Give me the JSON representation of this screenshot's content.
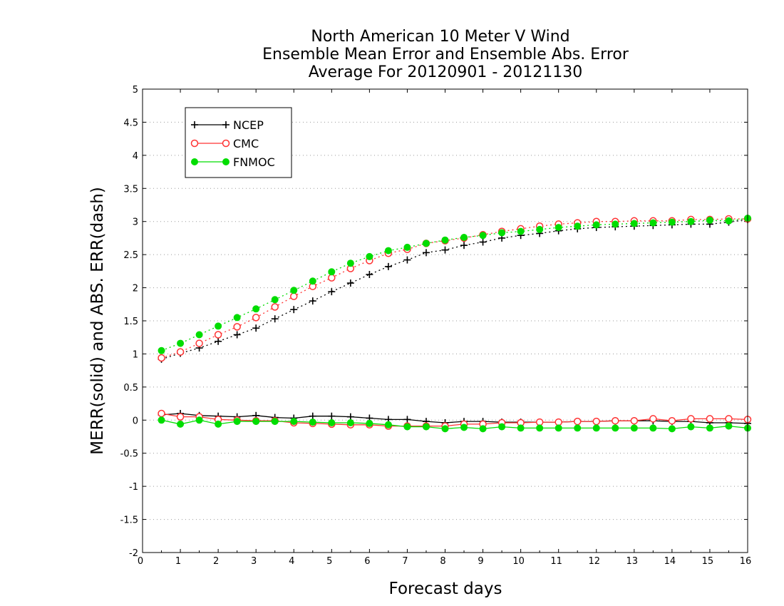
{
  "chart_data": {
    "type": "line",
    "title": [
      "North American 10 Meter V Wind",
      "Ensemble Mean Error and Ensemble Abs. Error",
      "Average For 20120901 - 20121130"
    ],
    "xlabel": "Forecast days",
    "ylabel": "MERR(solid) and ABS. ERR(dash)",
    "xlim": [
      0,
      16
    ],
    "ylim": [
      -2,
      5
    ],
    "xticks": [
      0,
      1,
      2,
      3,
      4,
      5,
      6,
      7,
      8,
      9,
      10,
      11,
      12,
      13,
      14,
      15,
      16
    ],
    "yticks": [
      -2,
      -1.5,
      -1,
      -0.5,
      0,
      0.5,
      1,
      1.5,
      2,
      2.5,
      3,
      3.5,
      4,
      4.5,
      5
    ],
    "ytick_labels": [
      "-2",
      "-1.5",
      "-1",
      "-0.5",
      "0",
      "0.5",
      "1",
      "1.5",
      "2",
      "2.5",
      "3",
      "3.5",
      "4",
      "4.5",
      "5"
    ],
    "grid": "horizontal dotted",
    "legend_position": "top-left",
    "x": [
      0.5,
      1,
      1.5,
      2,
      2.5,
      3,
      3.5,
      4,
      4.5,
      5,
      5.5,
      6,
      6.5,
      7,
      7.5,
      8,
      8.5,
      9,
      9.5,
      10,
      10.5,
      11,
      11.5,
      12,
      12.5,
      13,
      13.5,
      14,
      14.5,
      15,
      15.5,
      16
    ],
    "series": [
      {
        "name": "NCEP",
        "color": "#000000",
        "marker": "plus",
        "merr": [
          0.08,
          0.1,
          0.07,
          0.06,
          0.05,
          0.07,
          0.04,
          0.03,
          0.06,
          0.06,
          0.05,
          0.03,
          0.01,
          0.01,
          -0.02,
          -0.04,
          -0.02,
          -0.02,
          -0.03,
          -0.03,
          -0.03,
          -0.03,
          -0.02,
          -0.02,
          -0.01,
          -0.01,
          -0.01,
          -0.02,
          -0.02,
          -0.04,
          -0.04,
          -0.05
        ],
        "abs_err": [
          0.92,
          1.01,
          1.09,
          1.19,
          1.29,
          1.39,
          1.53,
          1.67,
          1.8,
          1.94,
          2.07,
          2.2,
          2.32,
          2.42,
          2.53,
          2.57,
          2.64,
          2.69,
          2.75,
          2.79,
          2.82,
          2.86,
          2.89,
          2.91,
          2.92,
          2.93,
          2.94,
          2.95,
          2.96,
          2.96,
          2.99,
          3.03
        ]
      },
      {
        "name": "CMC",
        "color": "#ff3333",
        "marker": "open-circle",
        "merr": [
          0.1,
          0.05,
          0.05,
          0.01,
          0.0,
          -0.01,
          -0.01,
          -0.04,
          -0.05,
          -0.06,
          -0.07,
          -0.07,
          -0.09,
          -0.09,
          -0.09,
          -0.09,
          -0.06,
          -0.06,
          -0.04,
          -0.04,
          -0.03,
          -0.03,
          -0.02,
          -0.02,
          -0.01,
          -0.01,
          0.02,
          -0.01,
          0.02,
          0.02,
          0.02,
          0.01
        ],
        "abs_err": [
          0.94,
          1.03,
          1.16,
          1.29,
          1.41,
          1.55,
          1.71,
          1.87,
          2.02,
          2.15,
          2.29,
          2.41,
          2.52,
          2.58,
          2.67,
          2.71,
          2.75,
          2.8,
          2.85,
          2.89,
          2.93,
          2.96,
          2.98,
          3.0,
          3.0,
          3.01,
          3.01,
          3.01,
          3.03,
          3.03,
          3.04,
          3.04
        ]
      },
      {
        "name": "FNMOC",
        "color": "#00dd00",
        "marker": "filled-circle",
        "merr": [
          0.0,
          -0.06,
          0.0,
          -0.06,
          -0.02,
          -0.02,
          -0.02,
          -0.02,
          -0.03,
          -0.04,
          -0.04,
          -0.05,
          -0.07,
          -0.1,
          -0.1,
          -0.13,
          -0.11,
          -0.13,
          -0.1,
          -0.12,
          -0.12,
          -0.12,
          -0.12,
          -0.12,
          -0.12,
          -0.12,
          -0.12,
          -0.13,
          -0.1,
          -0.12,
          -0.09,
          -0.12
        ],
        "abs_err": [
          1.05,
          1.16,
          1.29,
          1.42,
          1.55,
          1.68,
          1.82,
          1.96,
          2.1,
          2.24,
          2.37,
          2.47,
          2.56,
          2.61,
          2.67,
          2.72,
          2.76,
          2.79,
          2.83,
          2.85,
          2.88,
          2.91,
          2.93,
          2.95,
          2.96,
          2.97,
          2.98,
          2.99,
          3.0,
          3.02,
          3.01,
          3.05
        ]
      }
    ]
  }
}
